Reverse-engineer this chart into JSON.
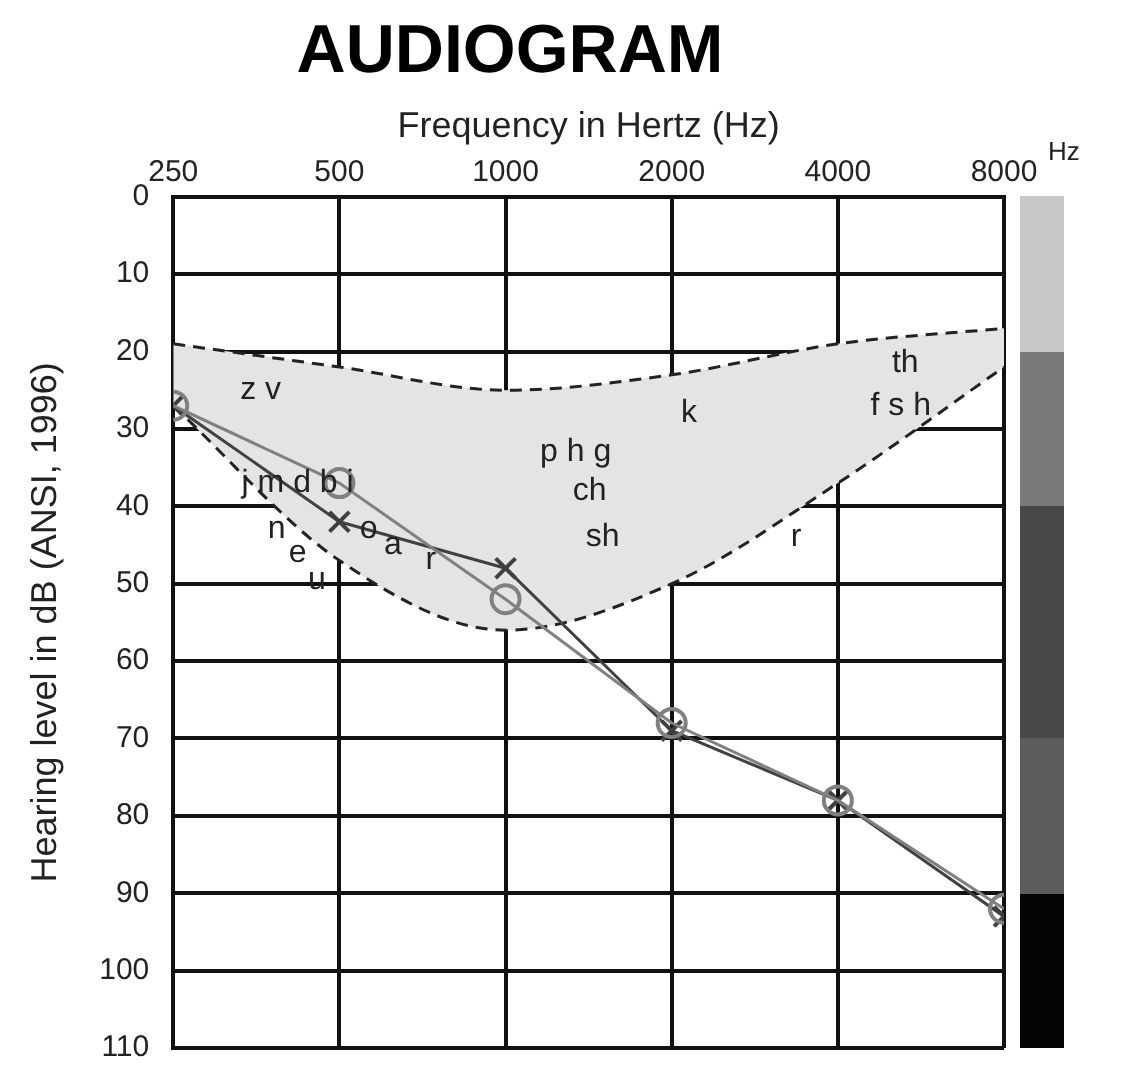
{
  "chart_data": {
    "type": "line",
    "title": "AUDIOGRAM",
    "xlabel": "Frequency in Hertz (Hz)",
    "ylabel": "Hearing level in dB (ANSI, 1996)",
    "log": "x",
    "xlim": [
      250,
      8000
    ],
    "xticks": [
      250,
      500,
      1000,
      2000,
      4000,
      8000
    ],
    "ylim": [
      110,
      0
    ],
    "yticks": [
      0,
      10,
      20,
      30,
      40,
      50,
      60,
      70,
      80,
      90,
      100,
      110
    ],
    "grid": true,
    "legend": false,
    "x": [
      250,
      500,
      1000,
      2000,
      4000,
      8000
    ],
    "series": [
      {
        "type": "area",
        "color": "#e4e4e4",
        "values": [
          null,
          null,
          null,
          null,
          null,
          null
        ],
        "lower": [
          27,
          47,
          56,
          50,
          37,
          22
        ],
        "upper": [
          19,
          22,
          25,
          23,
          19,
          17
        ]
      },
      {
        "color": "#222222",
        "line_style": "dashed",
        "marker": "none",
        "values": [
          19,
          22,
          25,
          23,
          19,
          17
        ]
      },
      {
        "color": "#222222",
        "line_style": "dashed",
        "marker": "none",
        "values": [
          27,
          47,
          56,
          50,
          37,
          22
        ]
      },
      {
        "color": "#808080",
        "marker": "circle",
        "values": [
          27,
          37,
          52,
          68,
          78,
          92
        ]
      },
      {
        "color": "#404040",
        "marker": "cross",
        "values": [
          27,
          42,
          48,
          69,
          78,
          93
        ]
      }
    ],
    "annotations": [
      "Hz",
      "z v",
      "th",
      "f s h",
      "k",
      "p h g",
      "ch",
      "sh",
      "r",
      "j m d b i",
      "n",
      "e",
      "u",
      "o",
      "a",
      "r"
    ]
  }
}
